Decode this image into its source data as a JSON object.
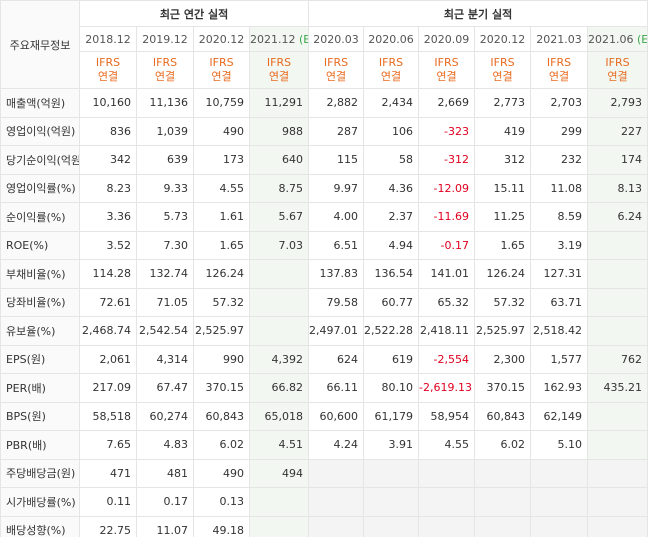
{
  "header": {
    "corner_label": "주요재무정보",
    "annual_title": "최근 연간 실적",
    "quarter_title": "최근 분기 실적",
    "annual_periods": [
      "2018.12",
      "2019.12",
      "2020.12",
      "2021.12"
    ],
    "annual_est_mark": "(E)",
    "quarter_periods": [
      "2020.03",
      "2020.06",
      "2020.09",
      "2020.12",
      "2021.03",
      "2021.06"
    ],
    "quarter_est_mark": "(E)",
    "ifrs_line1": "IFRS",
    "ifrs_line2": "연결"
  },
  "rows": [
    {
      "label": "매출액(억원)",
      "values": [
        "10,160",
        "11,136",
        "10,759",
        "11,291",
        "2,882",
        "2,434",
        "2,669",
        "2,773",
        "2,703",
        "2,793"
      ]
    },
    {
      "label": "영업이익(억원)",
      "values": [
        "836",
        "1,039",
        "490",
        "988",
        "287",
        "106",
        "-323",
        "419",
        "299",
        "227"
      ]
    },
    {
      "label": "당기순이익(억원)",
      "values": [
        "342",
        "639",
        "173",
        "640",
        "115",
        "58",
        "-312",
        "312",
        "232",
        "174"
      ]
    },
    {
      "label": "영업이익률(%)",
      "values": [
        "8.23",
        "9.33",
        "4.55",
        "8.75",
        "9.97",
        "4.36",
        "-12.09",
        "15.11",
        "11.08",
        "8.13"
      ]
    },
    {
      "label": "순이익률(%)",
      "values": [
        "3.36",
        "5.73",
        "1.61",
        "5.67",
        "4.00",
        "2.37",
        "-11.69",
        "11.25",
        "8.59",
        "6.24"
      ]
    },
    {
      "label": "ROE(%)",
      "values": [
        "3.52",
        "7.30",
        "1.65",
        "7.03",
        "6.51",
        "4.94",
        "-0.17",
        "1.65",
        "3.19",
        ""
      ]
    },
    {
      "label": "부채비율(%)",
      "values": [
        "114.28",
        "132.74",
        "126.24",
        "",
        "137.83",
        "136.54",
        "141.01",
        "126.24",
        "127.31",
        ""
      ]
    },
    {
      "label": "당좌비율(%)",
      "values": [
        "72.61",
        "71.05",
        "57.32",
        "",
        "79.58",
        "60.77",
        "65.32",
        "57.32",
        "63.71",
        ""
      ]
    },
    {
      "label": "유보율(%)",
      "values": [
        "2,468.74",
        "2,542.54",
        "2,525.97",
        "",
        "2,497.01",
        "2,522.28",
        "2,418.11",
        "2,525.97",
        "2,518.42",
        ""
      ]
    },
    {
      "label": "EPS(원)",
      "values": [
        "2,061",
        "4,314",
        "990",
        "4,392",
        "624",
        "619",
        "-2,554",
        "2,300",
        "1,577",
        "762"
      ]
    },
    {
      "label": "PER(배)",
      "values": [
        "217.09",
        "67.47",
        "370.15",
        "66.82",
        "66.11",
        "80.10",
        "-2,619.13",
        "370.15",
        "162.93",
        "435.21"
      ]
    },
    {
      "label": "BPS(원)",
      "values": [
        "58,518",
        "60,274",
        "60,843",
        "65,018",
        "60,600",
        "61,179",
        "58,954",
        "60,843",
        "62,149",
        ""
      ]
    },
    {
      "label": "PBR(배)",
      "values": [
        "7.65",
        "4.83",
        "6.02",
        "4.51",
        "4.24",
        "3.91",
        "4.55",
        "6.02",
        "5.10",
        ""
      ]
    },
    {
      "label": "주당배당금(원)",
      "values": [
        "471",
        "481",
        "490",
        "494",
        "",
        "",
        "",
        "",
        "",
        ""
      ]
    },
    {
      "label": "시가배당률(%)",
      "values": [
        "0.11",
        "0.17",
        "0.13",
        "",
        "",
        "",
        "",
        "",
        "",
        ""
      ]
    },
    {
      "label": "배당성향(%)",
      "values": [
        "22.75",
        "11.07",
        "49.18",
        "",
        "",
        "",
        "",
        "",
        "",
        ""
      ]
    }
  ]
}
